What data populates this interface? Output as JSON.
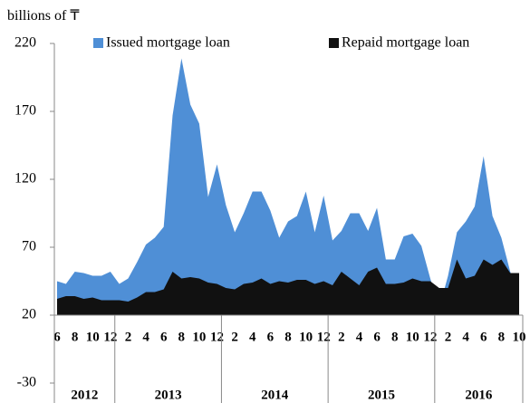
{
  "chart_data": {
    "type": "area",
    "y_label": "billions of ₸",
    "categories": [
      "6",
      null,
      "8",
      null,
      "10",
      null,
      "12",
      null,
      "2",
      null,
      "4",
      null,
      "6",
      null,
      "8",
      null,
      "10",
      null,
      "12",
      null,
      "2",
      null,
      "4",
      null,
      "6",
      null,
      "8",
      null,
      "10",
      null,
      "12",
      null,
      "2",
      null,
      "4",
      null,
      "6",
      null,
      "8",
      null,
      "10",
      null,
      "12",
      null,
      "2",
      null,
      "4",
      null,
      "6",
      null,
      "8",
      null,
      "10"
    ],
    "category_groups": [
      "2012",
      "2012",
      "2012",
      "2012",
      "2012",
      "2012",
      "2012",
      "2013",
      "2013",
      "2013",
      "2013",
      "2013",
      "2013",
      "2013",
      "2013",
      "2013",
      "2013",
      "2013",
      "2013",
      "2014",
      "2014",
      "2014",
      "2014",
      "2014",
      "2014",
      "2014",
      "2014",
      "2014",
      "2014",
      "2014",
      "2014",
      "2015",
      "2015",
      "2015",
      "2015",
      "2015",
      "2015",
      "2015",
      "2015",
      "2015",
      "2015",
      "2015",
      "2015",
      "2016",
      "2016",
      "2016",
      "2016",
      "2016",
      "2016",
      "2016",
      "2016",
      "2016",
      "2016"
    ],
    "series": [
      {
        "name": "Issued mortgage loan",
        "color": "#4f8fd6",
        "values": [
          45,
          43,
          52,
          51,
          49,
          49,
          52,
          43,
          47,
          59,
          72,
          77,
          85,
          167,
          209,
          175,
          161,
          107,
          131,
          101,
          81,
          95,
          111,
          111,
          97,
          77,
          89,
          93,
          111,
          81,
          108,
          75,
          82,
          95,
          95,
          82,
          99,
          61,
          61,
          78,
          80,
          71,
          47,
          25,
          49,
          81,
          89,
          100,
          137,
          93,
          77,
          52,
          35
        ]
      },
      {
        "name": "Repaid mortgage loan",
        "color": "#111111",
        "values": [
          32,
          34,
          34,
          32,
          33,
          31,
          31,
          31,
          30,
          33,
          37,
          37,
          39,
          52,
          47,
          48,
          47,
          44,
          43,
          40,
          39,
          43,
          44,
          47,
          43,
          45,
          44,
          46,
          46,
          43,
          45,
          42,
          52,
          47,
          42,
          52,
          55,
          43,
          43,
          44,
          47,
          45,
          45,
          40,
          40,
          61,
          47,
          49,
          61,
          57,
          61,
          51,
          51
        ]
      }
    ],
    "ylim": [
      -30,
      222
    ],
    "yticks": [
      -30,
      20,
      70,
      120,
      170,
      220
    ],
    "grid": false,
    "legend": "top"
  }
}
